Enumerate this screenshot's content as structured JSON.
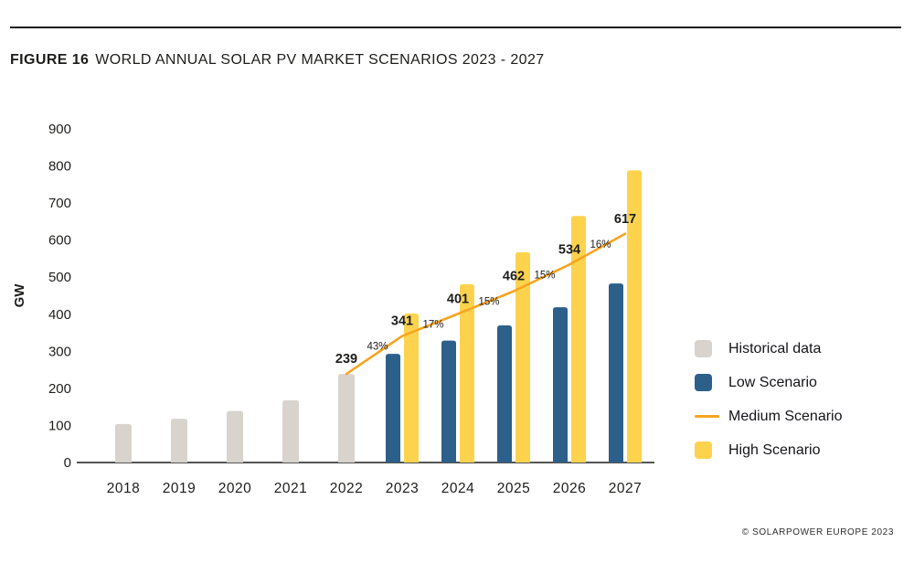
{
  "header": {
    "figure_label": "FIGURE 16",
    "title": "WORLD ANNUAL SOLAR PV MARKET SCENARIOS 2023 - 2027"
  },
  "footer": {
    "credit": "© SOLARPOWER EUROPE 2023"
  },
  "legend": {
    "items": [
      {
        "label": "Historical data",
        "swatch": "square",
        "color": "#d9d3ce"
      },
      {
        "label": "Low Scenario",
        "swatch": "square",
        "color": "#2d5f8b"
      },
      {
        "label": "Medium Scenario",
        "swatch": "line",
        "color": "#f7a41f"
      },
      {
        "label": "High Scenario",
        "swatch": "square",
        "color": "#fdd34e"
      }
    ]
  },
  "chart_data": {
    "type": "bar",
    "title": "World annual solar PV market scenarios 2023 - 2027",
    "xlabel": "",
    "ylabel": "GW",
    "ylim": [
      0,
      900
    ],
    "ytick_step": 100,
    "grid": false,
    "legend_position": "right",
    "categories": [
      "2018",
      "2019",
      "2020",
      "2021",
      "2022",
      "2023",
      "2024",
      "2025",
      "2026",
      "2027"
    ],
    "series": [
      {
        "name": "Historical data",
        "type": "bar",
        "color": "#d9d3ce",
        "values": [
          104,
          118,
          139,
          168,
          239,
          null,
          null,
          null,
          null,
          null
        ]
      },
      {
        "name": "Low Scenario",
        "type": "bar",
        "color": "#2d5f8b",
        "values": [
          null,
          null,
          null,
          null,
          null,
          293,
          329,
          370,
          419,
          483
        ]
      },
      {
        "name": "Medium Scenario",
        "type": "line",
        "color": "#f7a41f",
        "values": [
          null,
          null,
          null,
          null,
          239,
          341,
          401,
          462,
          534,
          617
        ],
        "point_labels": [
          null,
          null,
          null,
          null,
          "239",
          "341",
          "401",
          "462",
          "534",
          "617"
        ],
        "growth_labels": [
          null,
          null,
          null,
          null,
          null,
          "43%",
          "17%",
          "15%",
          "15%",
          "16%"
        ]
      },
      {
        "name": "High Scenario",
        "type": "bar",
        "color": "#fdd34e",
        "values": [
          null,
          null,
          null,
          null,
          null,
          402,
          481,
          567,
          665,
          788
        ]
      }
    ]
  }
}
